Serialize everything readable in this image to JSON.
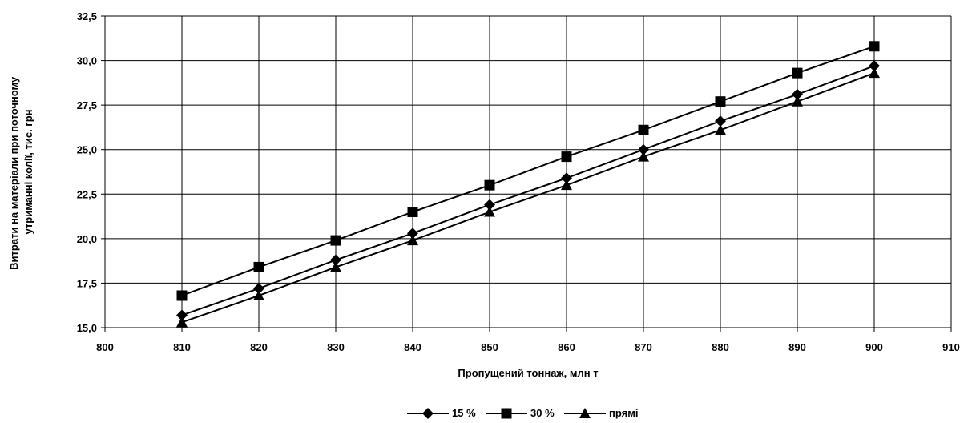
{
  "chart_data": {
    "type": "line",
    "xlabel": "Пропущений тоннаж, млн т",
    "ylabel_lines": [
      "Витрати на матеріали при поточному",
      "утриманні колії, тис. грн"
    ],
    "xlim": [
      800,
      910
    ],
    "ylim": [
      15.0,
      32.5
    ],
    "x_ticks": [
      800,
      810,
      820,
      830,
      840,
      850,
      860,
      870,
      880,
      890,
      900,
      910
    ],
    "x_tick_labels": [
      "800",
      "810",
      "820",
      "830",
      "840",
      "850",
      "860",
      "870",
      "880",
      "890",
      "900",
      "910"
    ],
    "y_ticks": [
      15.0,
      17.5,
      20.0,
      22.5,
      25.0,
      27.5,
      30.0,
      32.5
    ],
    "y_tick_labels": [
      "15,0",
      "17,5",
      "20,0",
      "22,5",
      "25,0",
      "27,5",
      "30,0",
      "32,5"
    ],
    "grid": true,
    "legend_position": "bottom-center",
    "x": [
      810,
      820,
      830,
      840,
      850,
      860,
      870,
      880,
      890,
      900
    ],
    "series": [
      {
        "name": "15 %",
        "marker": "diamond",
        "color": "#000000",
        "values": [
          15.7,
          17.2,
          18.8,
          20.3,
          21.9,
          23.4,
          25.0,
          26.6,
          28.1,
          29.7
        ]
      },
      {
        "name": "30 %",
        "marker": "square",
        "color": "#000000",
        "values": [
          16.8,
          18.4,
          19.9,
          21.5,
          23.0,
          24.6,
          26.1,
          27.7,
          29.3,
          30.8
        ]
      },
      {
        "name": "прямі",
        "marker": "triangle",
        "color": "#000000",
        "values": [
          15.3,
          16.8,
          18.4,
          19.9,
          21.5,
          23.0,
          24.6,
          26.1,
          27.7,
          29.3
        ]
      }
    ]
  }
}
